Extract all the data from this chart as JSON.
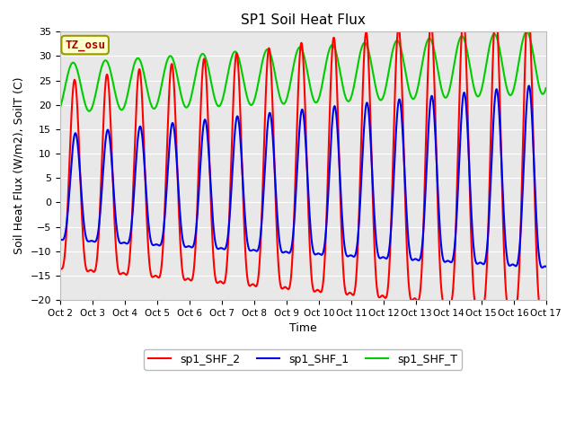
{
  "title": "SP1 Soil Heat Flux",
  "xlabel": "Time",
  "ylabel": "Soil Heat Flux (W/m2), SoilT (C)",
  "ylim": [
    -20,
    35
  ],
  "yticks": [
    -20,
    -15,
    -10,
    -5,
    0,
    5,
    10,
    15,
    20,
    25,
    30,
    35
  ],
  "xtick_labels": [
    "Oct 2",
    "Oct 3",
    "Oct 4",
    "Oct 5",
    "Oct 6",
    "Oct 7",
    "Oct 8",
    "Oct 9",
    "Oct 10",
    "Oct 11",
    "Oct 12",
    "Oct 13",
    "Oct 14",
    "Oct 15",
    "Oct 16",
    "Oct 17"
  ],
  "color_red": "#FF0000",
  "color_blue": "#0000EE",
  "color_green": "#00CC00",
  "legend_labels": [
    "sp1_SHF_2",
    "sp1_SHF_1",
    "sp1_SHF_T"
  ],
  "annotation_text": "TZ_osu",
  "fig_bg": "#FFFFFF",
  "plot_bg": "#E8E8E8",
  "grid_color": "#FFFFFF",
  "line_width": 1.5
}
